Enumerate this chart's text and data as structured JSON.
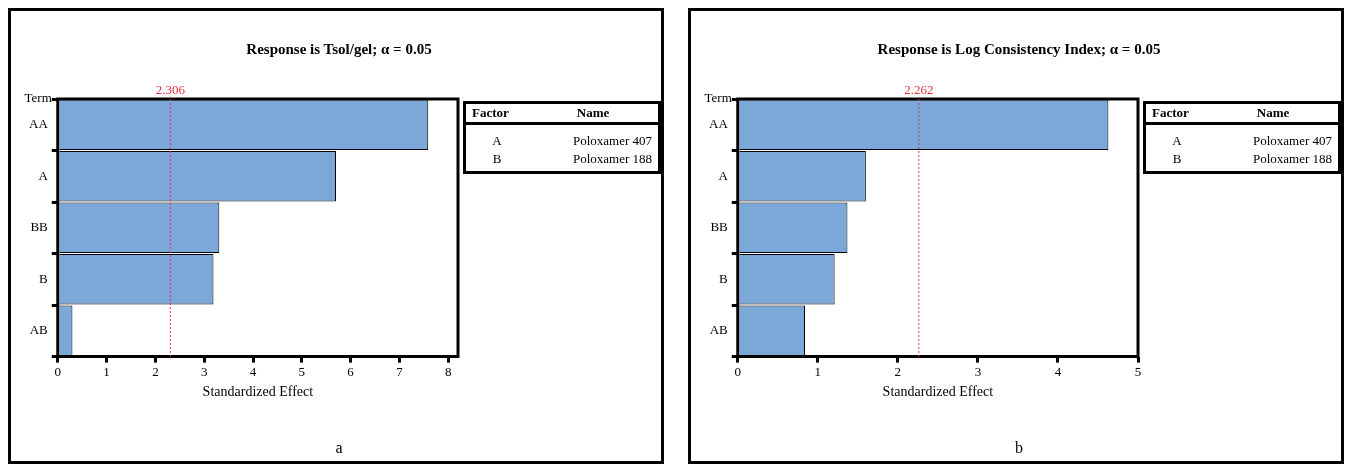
{
  "chart_data": [
    {
      "type": "bar",
      "orientation": "horizontal",
      "title": "Response is Tsol/gel; α = 0.05",
      "xlabel": "Standardized Effect",
      "ylabel": "Term",
      "categories": [
        "AA",
        "A",
        "BB",
        "B",
        "AB"
      ],
      "values": [
        7.59,
        5.7,
        3.31,
        3.19,
        0.3
      ],
      "color": "#7ba7d9",
      "xlim": [
        0,
        8.2
      ],
      "xticks": [
        0,
        1,
        2,
        3,
        4,
        5,
        6,
        7,
        8
      ],
      "grid": false,
      "legend": false,
      "ref_lines": [
        {
          "axis": "x",
          "value": 2.306,
          "label": "2.306",
          "color": "#e8323c",
          "line_style": "dotted"
        }
      ],
      "annotations": [
        "Factor",
        "Name",
        "A",
        "Poloxamer 407",
        "B",
        "Poloxamer 188",
        "a"
      ]
    },
    {
      "type": "bar",
      "orientation": "horizontal",
      "title": "Response is Log Consistency Index; α = 0.05",
      "xlabel": "Standardized Effect",
      "ylabel": "Term",
      "categories": [
        "AA",
        "A",
        "BB",
        "B",
        "AB"
      ],
      "values": [
        4.63,
        1.6,
        1.37,
        1.21,
        0.84
      ],
      "color": "#7ba7d9",
      "xlim": [
        0,
        5
      ],
      "xticks": [
        0,
        1,
        2,
        3,
        4,
        5
      ],
      "grid": false,
      "legend": false,
      "ref_lines": [
        {
          "axis": "x",
          "value": 2.262,
          "label": "2.262",
          "color": "#e8323c",
          "line_style": "dotted"
        }
      ],
      "annotations": [
        "Factor",
        "Name",
        "A",
        "Poloxamer 407",
        "B",
        "Poloxamer 188",
        "b"
      ]
    }
  ]
}
